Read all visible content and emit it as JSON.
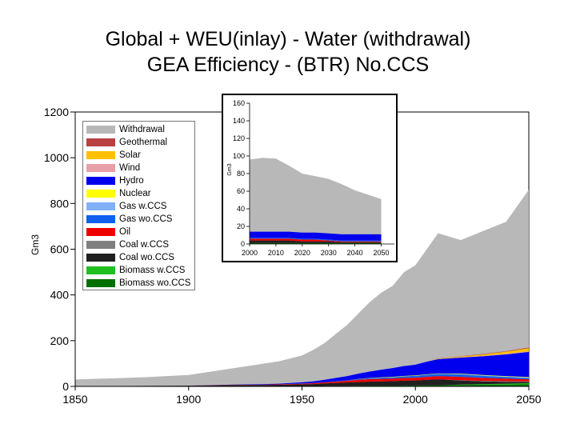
{
  "title": {
    "line1": "Global + WEU(inlay) - Water (withdrawal)",
    "line2": "GEA Efficiency - (BTR) No.CCS"
  },
  "chart_data": [
    {
      "type": "area",
      "panel": "main",
      "ylabel": "Gm3",
      "xlim": [
        1850,
        2050
      ],
      "ylim": [
        0,
        1200
      ],
      "x_ticks": [
        1850,
        1900,
        1950,
        2000,
        2050
      ],
      "y_ticks": [
        0,
        200,
        400,
        600,
        800,
        1000,
        1200
      ],
      "legend_position": "top-left",
      "legend": [
        {
          "name": "Withdrawal",
          "color": "#b8b8b8"
        },
        {
          "name": "Geothermal",
          "color": "#b84040"
        },
        {
          "name": "Solar",
          "color": "#ffc000"
        },
        {
          "name": "Wind",
          "color": "#e8a0a8"
        },
        {
          "name": "Hydro",
          "color": "#0000ee"
        },
        {
          "name": "Nuclear",
          "color": "#ffff00"
        },
        {
          "name": "Gas w.CCS",
          "color": "#7fb0f8"
        },
        {
          "name": "Gas wo.CCS",
          "color": "#1060f0"
        },
        {
          "name": "Oil",
          "color": "#ee0000"
        },
        {
          "name": "Coal w.CCS",
          "color": "#808080"
        },
        {
          "name": "Coal wo.CCS",
          "color": "#202020"
        },
        {
          "name": "Biomass w.CCS",
          "color": "#20c020"
        },
        {
          "name": "Biomass wo.CCS",
          "color": "#007000"
        }
      ],
      "x": [
        1850,
        1880,
        1900,
        1920,
        1930,
        1940,
        1950,
        1955,
        1960,
        1965,
        1970,
        1975,
        1980,
        1985,
        1990,
        1995,
        2000,
        2005,
        2010,
        2020,
        2030,
        2040,
        2050
      ],
      "total": [
        30,
        40,
        50,
        80,
        95,
        110,
        135,
        160,
        190,
        230,
        270,
        320,
        370,
        410,
        440,
        500,
        530,
        600,
        670,
        640,
        680,
        720,
        860
      ],
      "series": [
        {
          "name": "Biomass wo.CCS",
          "values": [
            0,
            0,
            0,
            1,
            1,
            1,
            1,
            1,
            2,
            2,
            2,
            3,
            3,
            3,
            3,
            4,
            4,
            5,
            5,
            6,
            7,
            8,
            9
          ]
        },
        {
          "name": "Biomass w.CCS",
          "values": [
            0,
            0,
            0,
            0,
            0,
            0,
            0,
            0,
            0,
            0,
            0,
            0,
            0,
            0,
            0,
            0,
            0,
            0,
            0,
            2,
            3,
            4,
            5
          ]
        },
        {
          "name": "Coal wo.CCS",
          "values": [
            1,
            2,
            3,
            5,
            5,
            6,
            8,
            9,
            11,
            13,
            15,
            16,
            18,
            19,
            20,
            21,
            22,
            24,
            26,
            18,
            12,
            8,
            5
          ]
        },
        {
          "name": "Coal w.CCS",
          "values": [
            0,
            0,
            0,
            0,
            0,
            0,
            0,
            0,
            0,
            0,
            0,
            0,
            0,
            0,
            0,
            0,
            0,
            0,
            0,
            1,
            2,
            3,
            3
          ]
        },
        {
          "name": "Oil",
          "values": [
            0,
            0,
            0,
            1,
            1,
            2,
            3,
            4,
            5,
            6,
            8,
            10,
            11,
            11,
            11,
            12,
            12,
            13,
            14,
            15,
            13,
            11,
            9
          ]
        },
        {
          "name": "Gas wo.CCS",
          "values": [
            0,
            0,
            0,
            0,
            0,
            0,
            1,
            1,
            1,
            2,
            2,
            3,
            4,
            5,
            6,
            7,
            8,
            9,
            10,
            11,
            9,
            7,
            5
          ]
        },
        {
          "name": "Gas w.CCS",
          "values": [
            0,
            0,
            0,
            0,
            0,
            0,
            0,
            0,
            0,
            0,
            0,
            0,
            0,
            0,
            0,
            0,
            0,
            0,
            0,
            1,
            2,
            2,
            3
          ]
        },
        {
          "name": "Nuclear",
          "values": [
            0,
            0,
            0,
            0,
            0,
            0,
            0,
            0,
            0,
            0,
            0,
            1,
            1,
            2,
            2,
            2,
            2,
            2,
            2,
            2,
            2,
            2,
            2
          ]
        },
        {
          "name": "Hydro",
          "values": [
            0,
            0,
            0,
            1,
            2,
            3,
            5,
            7,
            10,
            14,
            18,
            23,
            28,
            33,
            38,
            43,
            47,
            55,
            62,
            70,
            82,
            95,
            110
          ]
        },
        {
          "name": "Wind",
          "values": [
            0,
            0,
            0,
            0,
            0,
            0,
            0,
            0,
            0,
            0,
            0,
            0,
            0,
            0,
            0,
            0,
            0,
            0,
            1,
            2,
            2,
            3,
            3
          ]
        },
        {
          "name": "Solar",
          "values": [
            0,
            0,
            0,
            0,
            0,
            0,
            0,
            0,
            0,
            0,
            0,
            0,
            0,
            0,
            0,
            0,
            0,
            0,
            1,
            3,
            6,
            9,
            13
          ]
        },
        {
          "name": "Geothermal",
          "values": [
            0,
            0,
            0,
            0,
            0,
            0,
            0,
            0,
            0,
            0,
            0,
            0,
            0,
            0,
            0,
            0,
            0,
            0,
            1,
            1,
            2,
            2,
            3
          ]
        }
      ]
    },
    {
      "type": "area",
      "panel": "inset",
      "ylabel": "Gm3",
      "xlim": [
        2000,
        2055
      ],
      "ylim": [
        0,
        160
      ],
      "x_ticks": [
        2000,
        2010,
        2020,
        2030,
        2040,
        2050
      ],
      "y_ticks": [
        0,
        20,
        40,
        60,
        80,
        100,
        120,
        140,
        160
      ],
      "x": [
        2000,
        2005,
        2010,
        2015,
        2020,
        2025,
        2030,
        2035,
        2040,
        2045,
        2050
      ],
      "total": [
        96,
        98,
        97,
        89,
        80,
        77,
        74,
        68,
        61,
        56,
        51
      ],
      "series": [
        {
          "name": "Biomass wo.CCS",
          "values": [
            1,
            1,
            1,
            1,
            1,
            1,
            1,
            1,
            1,
            1,
            1
          ]
        },
        {
          "name": "Coal wo.CCS",
          "values": [
            3,
            3,
            3,
            3,
            2,
            2,
            2,
            1,
            1,
            1,
            1
          ]
        },
        {
          "name": "Oil",
          "values": [
            2,
            2,
            2,
            2,
            2,
            2,
            1,
            1,
            1,
            1,
            1
          ]
        },
        {
          "name": "Gas wo.CCS",
          "values": [
            1,
            1,
            1,
            1,
            1,
            1,
            1,
            1,
            1,
            1,
            1
          ]
        },
        {
          "name": "Hydro",
          "values": [
            7,
            7,
            7,
            7,
            7,
            7,
            7,
            7,
            7,
            7,
            7
          ]
        },
        {
          "name": "Solar",
          "values": [
            0,
            0,
            0,
            0,
            0,
            0,
            0,
            0,
            0,
            0,
            0
          ]
        }
      ]
    }
  ]
}
